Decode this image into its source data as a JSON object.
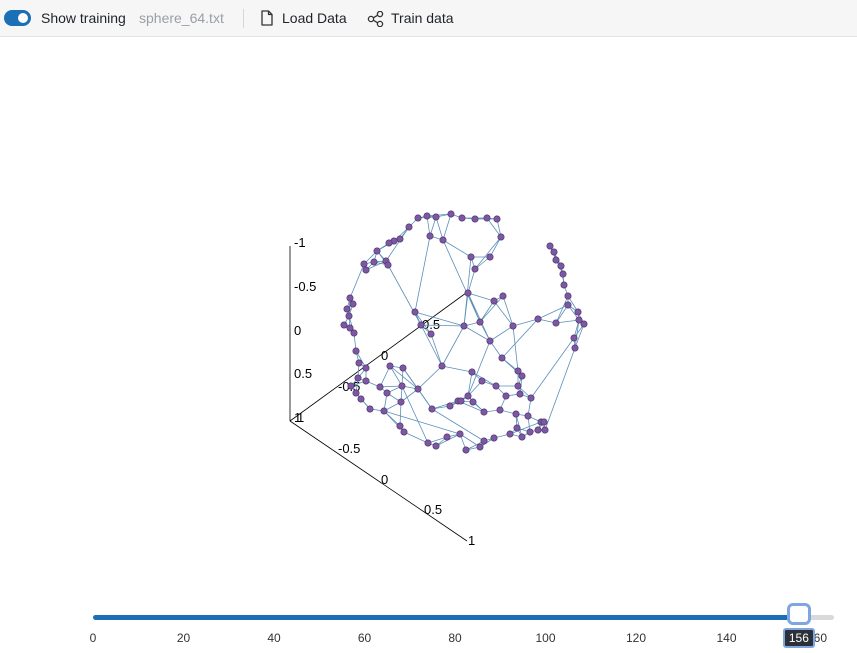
{
  "toolbar": {
    "show_training_label": "Show training",
    "show_training_on": true,
    "filename": "sphere_64.txt",
    "load_data_label": "Load Data",
    "train_data_label": "Train data",
    "accent_color": "#1b6fb5"
  },
  "plot": {
    "axis1_ticks": [
      "-1",
      "-0.5",
      "0",
      "0.5",
      "1"
    ],
    "axis2_ticks": [
      "-0.5",
      "0",
      "0.5",
      "1"
    ],
    "axis3_ticks": [
      "-0.5",
      "0",
      "0.5",
      "1"
    ],
    "node_color": "#7d57a3",
    "edge_color": "#5b8fb8"
  },
  "slider": {
    "min": 0,
    "max": 160,
    "value": 156,
    "value_label": "156",
    "ticks": [
      "0",
      "20",
      "40",
      "60",
      "80",
      "100",
      "120",
      "140",
      "160"
    ],
    "fill_color": "#1b6fb5"
  }
}
